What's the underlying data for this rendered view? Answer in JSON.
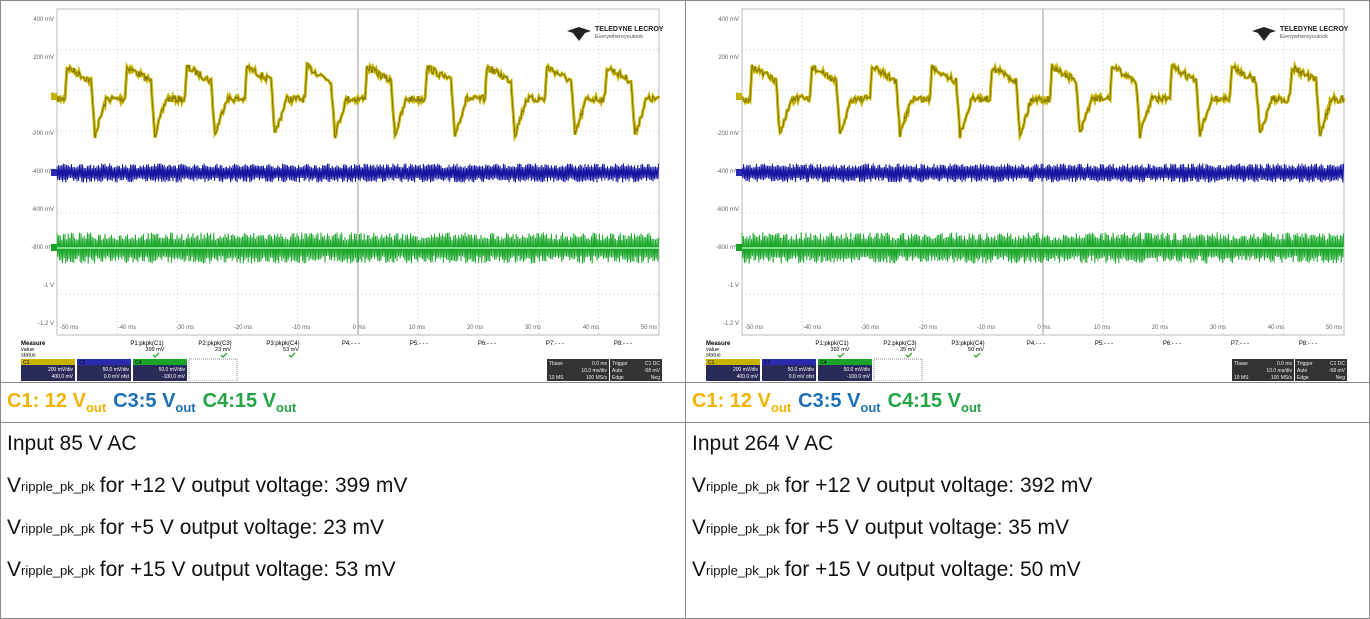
{
  "panels": [
    {
      "scope": {
        "brand": "TELEDYNE LECROY",
        "tagline": "Everywhereyoulook",
        "y_labels": [
          "400 mV",
          "200 mV",
          "0",
          "-200 mV",
          "-400 mV",
          "-600 mV",
          "-800 mV",
          "-1 V",
          "-1.2 V"
        ],
        "x_labels": [
          "-50 ms",
          "-40 ms",
          "-30 ms",
          "-20 ms",
          "-10 ms",
          "0 ms",
          "10 ms",
          "20 ms",
          "30 ms",
          "40 ms",
          "50 ms"
        ],
        "measure": {
          "title": "Measure",
          "rows": [
            "value",
            "status"
          ],
          "params": [
            "P1:pkpk(C1)",
            "P2:pkpk(C3)",
            "P3:pkpk(C4)",
            "P4:- - -",
            "P5:- - -",
            "P6:- - -",
            "P7:- - -",
            "P8:- - -"
          ],
          "values": [
            "399 mV",
            "23 mV",
            "53 mV"
          ]
        },
        "channels": [
          {
            "name": "C1",
            "scale": "200 mV/div",
            "offset": "400.0 mV"
          },
          {
            "name": "C3",
            "scale": "50.0 mV/div",
            "offset": "0.0 mV ofst"
          },
          {
            "name": "C4",
            "scale": "50.0 mV/div",
            "offset": "-100.0 mV"
          }
        ],
        "timebase": {
          "label": "Tbase",
          "delay": "0.0 ms",
          "div": "10.0 ms/div",
          "samples": "10 MS",
          "rate": "100 MS/s"
        },
        "trigger": {
          "label": "Trigger",
          "source": "C1 DC",
          "mode": "Auto",
          "level": "-58 mV",
          "type": "Edge",
          "slope": "Neg"
        }
      },
      "legend": [
        {
          "label": "C1: 12 V",
          "sub": "out"
        },
        {
          "label": "C3:5 V",
          "sub": "out"
        },
        {
          "label": "C4:15 V",
          "sub": "out"
        }
      ],
      "input": "Input 85 V AC",
      "lines": [
        {
          "pre": "V",
          "sub": "ripple_pk_pk",
          "text": "for +12 V output voltage: 399 mV"
        },
        {
          "pre": "V",
          "sub": "ripple_pk_pk",
          "text": "for +5 V output voltage: 23 mV"
        },
        {
          "pre": "V",
          "sub": "ripple_pk_pk",
          "text": "for +15 V output voltage: 53 mV"
        }
      ]
    },
    {
      "scope": {
        "brand": "TELEDYNE LECROY",
        "tagline": "Everywhereyoulook",
        "y_labels": [
          "400 mV",
          "200 mV",
          "0",
          "-200 mV",
          "-400 mV",
          "-600 mV",
          "-800 mV",
          "-1 V",
          "-1.2 V"
        ],
        "x_labels": [
          "-50 ms",
          "-40 ms",
          "-30 ms",
          "-20 ms",
          "-10 ms",
          "0 ms",
          "10 ms",
          "20 ms",
          "30 ms",
          "40 ms",
          "50 ms"
        ],
        "measure": {
          "title": "Measure",
          "rows": [
            "value",
            "status"
          ],
          "params": [
            "P1:pkpk(C1)",
            "P2:pkpk(C3)",
            "P3:pkpk(C4)",
            "P4:- - -",
            "P5:- - -",
            "P6:- - -",
            "P7:- - -",
            "P8:- - -"
          ],
          "values": [
            "392 mV",
            "35 mV",
            "50 mV"
          ]
        },
        "channels": [
          {
            "name": "C1",
            "scale": "200 mV/div",
            "offset": "400.0 mV"
          },
          {
            "name": "C3",
            "scale": "50.0 mV/div",
            "offset": "0.0 mV ofst"
          },
          {
            "name": "C4",
            "scale": "50.0 mV/div",
            "offset": "-100.0 mV"
          }
        ],
        "timebase": {
          "label": "Tbase",
          "delay": "0.0 ms",
          "div": "10.0 ms/div",
          "samples": "10 MS",
          "rate": "100 MS/s"
        },
        "trigger": {
          "label": "Trigger",
          "source": "C1 DC",
          "mode": "Auto",
          "level": "-58 mV",
          "type": "Edge",
          "slope": "Neg"
        }
      },
      "legend": [
        {
          "label": "C1: 12 V",
          "sub": "out"
        },
        {
          "label": "C3:5 V",
          "sub": "out"
        },
        {
          "label": "C4:15 V",
          "sub": "out"
        }
      ],
      "input": "Input 264 V AC",
      "lines": [
        {
          "pre": "V",
          "sub": "ripple_pk_pk",
          "text": "for +12 V output voltage: 392 mV"
        },
        {
          "pre": "V",
          "sub": "ripple_pk_pk",
          "text": "for +5 V output voltage: 35 mV"
        },
        {
          "pre": "V",
          "sub": "ripple_pk_pk",
          "text": "for +15 V output voltage: 50 mV"
        }
      ]
    }
  ]
}
